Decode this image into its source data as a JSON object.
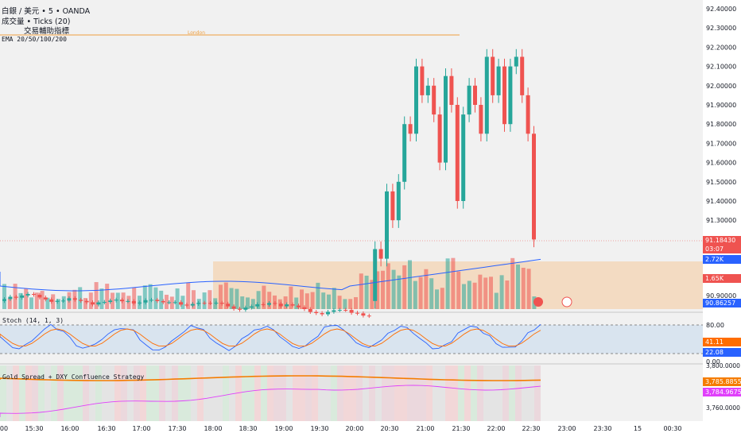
{
  "header": {
    "symbol_line": "白銀 / 美元 • 5 • OANDA",
    "volume_line": "成交量 • Ticks (20)",
    "indicator_line": "交易輔助指標",
    "ema_line": "EMA 20/50/100/200",
    "session_label": "London"
  },
  "price_axis": {
    "ticks": [
      "92.40000",
      "92.30000",
      "92.20000",
      "92.10000",
      "92.00000",
      "91.90000",
      "91.80000",
      "91.70000",
      "91.60000",
      "91.50000",
      "91.40000",
      "91.30000",
      "90.90000"
    ],
    "current_price": "91.18430",
    "countdown": "03:07",
    "vol_label_blue": "2.72K",
    "vol_label_red": "1.65K",
    "ema_price": "90.86257"
  },
  "stoch": {
    "title": "Stoch (14, 1, 3)",
    "ticks": [
      "80.00",
      "0.00"
    ],
    "k_value": "41.11",
    "d_value": "22.08"
  },
  "strategy": {
    "title": "Gold Spread + DXY Confluence Strategy",
    "ticks": [
      "3,800.0000",
      "3,760.0000"
    ],
    "value_orange": "3,785.88550",
    "value_purple": "3,784.96750"
  },
  "time_axis": {
    "labels": [
      "00",
      "15:30",
      "16:00",
      "16:30",
      "17:00",
      "17:30",
      "18:00",
      "18:30",
      "19:00",
      "19:30",
      "20:00",
      "20:30",
      "21:00",
      "21:30",
      "22:00",
      "22:30",
      "23:00",
      "23:30",
      "15",
      "00:30"
    ]
  },
  "colors": {
    "up": "#26a69a",
    "down": "#ef5350",
    "ema": "#2962ff",
    "session": "#f7c289",
    "stoch_k": "#2962ff",
    "stoch_d": "#ff6d00",
    "strategy_orange": "#f57c00",
    "strategy_purple": "#e040fb"
  },
  "icons": {
    "flash": "flash-event-icon",
    "us_flag": "us-flag-icon"
  }
}
